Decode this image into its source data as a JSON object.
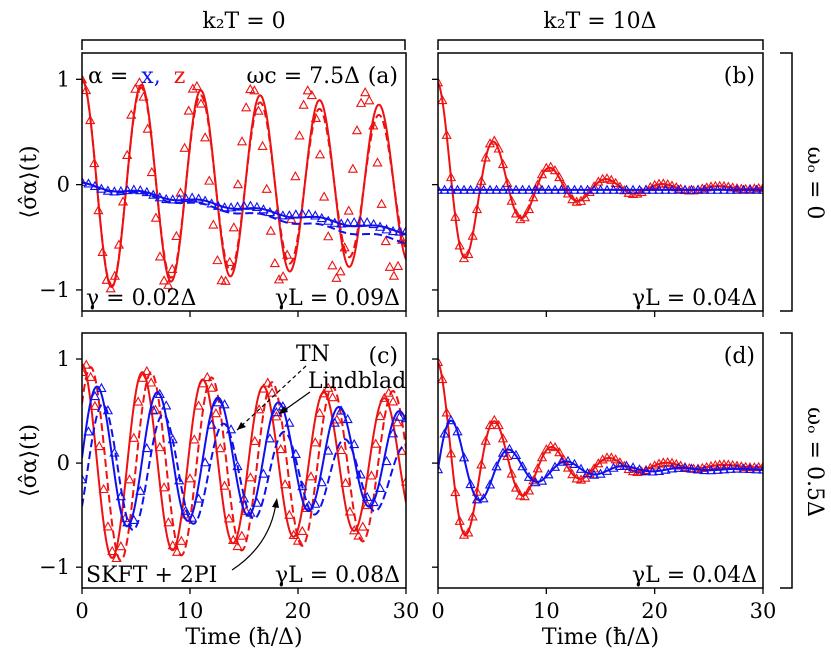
{
  "figure": {
    "column_headers": [
      "k₂T = 0",
      "k₂T = 10Δ"
    ],
    "row_labels": [
      "ωₒ = 0",
      "ωₒ = 0.5Δ"
    ],
    "legend_alpha": {
      "prefix": "α =",
      "x": "x",
      "comma": ",",
      "z": "z"
    },
    "curve_labels": {
      "tn": "TN",
      "lindblad": "Lindblad",
      "skft": "SKFT + 2PI"
    },
    "colors": {
      "x": "#1010ee",
      "z": "#ee1111"
    },
    "styles": {
      "skft": "solid line",
      "tn": "dashed line",
      "lindblad": "triangles"
    }
  },
  "chart_data": [
    {
      "id": "a",
      "type": "line",
      "panel_label": "(a)",
      "col": 0,
      "row": 0,
      "title": "",
      "xlabel": "",
      "ylabel": "⟨σ̂α⟩(t)",
      "xlim": [
        0,
        30
      ],
      "ylim": [
        -1.2,
        1.25
      ],
      "xticks": [
        0,
        10,
        20,
        30
      ],
      "yticks": [
        -1,
        0,
        1
      ],
      "show_xticklabels": false,
      "show_yticklabels": true,
      "annotations": {
        "top_right": "ωc = 7.5Δ",
        "bottom_left": "γ = 0.02Δ",
        "bottom_right": "γL = 0.09Δ"
      },
      "series": [
        {
          "name": "z SKFT + 2PI",
          "component": "z",
          "style": "solid",
          "x_start": 0,
          "x_end": 30,
          "A": 1.0,
          "period": 5.5,
          "gamma": 0.01,
          "offset": 0,
          "slope": 0
        },
        {
          "name": "z TN",
          "component": "z",
          "style": "dashed",
          "x_start": 0,
          "x_end": 30,
          "A": 1.0,
          "period": 5.5,
          "gamma": 0.015,
          "offset": 0,
          "slope": 0
        },
        {
          "name": "z Lindblad",
          "component": "z",
          "style": "triangle",
          "x_start": 0,
          "x_end": 30,
          "step": 0.38,
          "A": 1.0,
          "period": 5.25,
          "gamma": 0.005,
          "offset": 0,
          "slope": 0
        },
        {
          "name": "x SKFT + 2PI",
          "component": "x",
          "style": "solid",
          "x_start": 0,
          "x_end": 30,
          "A": 0.02,
          "period": 5.5,
          "gamma": 0,
          "offset": 0,
          "slope": -0.015
        },
        {
          "name": "x TN",
          "component": "x",
          "style": "dashed",
          "x_start": 0,
          "x_end": 30,
          "A": 0.02,
          "period": 5.5,
          "gamma": 0,
          "offset": 0,
          "slope": -0.018
        },
        {
          "name": "x Lindblad",
          "component": "x",
          "style": "triangle",
          "x_start": 0,
          "x_end": 30,
          "step": 0.6,
          "A": 0.025,
          "period": 5.25,
          "gamma": 0,
          "offset": 0,
          "slope": -0.0145
        }
      ]
    },
    {
      "id": "b",
      "type": "line",
      "panel_label": "(b)",
      "col": 1,
      "row": 0,
      "title": "",
      "xlabel": "",
      "ylabel": "",
      "xlim": [
        0,
        30
      ],
      "ylim": [
        -1.2,
        1.25
      ],
      "xticks": [
        0,
        10,
        20,
        30
      ],
      "yticks": [
        -1,
        0,
        1
      ],
      "show_xticklabels": false,
      "show_yticklabels": false,
      "annotations": {
        "bottom_right": "γL = 0.04Δ"
      },
      "series": [
        {
          "name": "z SKFT + 2PI",
          "component": "z",
          "style": "solid",
          "x_start": 0,
          "x_end": 30,
          "A": 1.0,
          "period": 5.2,
          "gamma": 0.16,
          "offset": -0.03,
          "slope": 0
        },
        {
          "name": "z Lindblad",
          "component": "z",
          "style": "triangle",
          "x_start": 0,
          "x_end": 30,
          "step": 0.4,
          "A": 1.0,
          "period": 5.2,
          "gamma": 0.155,
          "offset": -0.03,
          "slope": 0
        },
        {
          "name": "x SKFT + 2PI",
          "component": "x",
          "style": "solid",
          "x_start": 0,
          "x_end": 30,
          "A": 0.0,
          "period": 5.2,
          "gamma": 0,
          "offset": -0.05,
          "slope": 0
        },
        {
          "name": "x Lindblad",
          "component": "x",
          "style": "triangle",
          "x_start": 0,
          "x_end": 30,
          "step": 0.6,
          "A": 0.0,
          "period": 5.2,
          "gamma": 0,
          "offset": -0.05,
          "slope": 0
        }
      ]
    },
    {
      "id": "c",
      "type": "line",
      "panel_label": "(c)",
      "col": 0,
      "row": 1,
      "title": "",
      "xlabel": "Time (ħ/Δ)",
      "ylabel": "⟨σ̂α⟩(t)",
      "xlim": [
        0,
        30
      ],
      "ylim": [
        -1.2,
        1.25
      ],
      "xticks": [
        0,
        10,
        20,
        30
      ],
      "yticks": [
        -1,
        0,
        1
      ],
      "show_xticklabels": true,
      "show_yticklabels": true,
      "annotations": {
        "bottom_right": "γL = 0.08Δ"
      },
      "series": [
        {
          "name": "z SKFT + 2PI",
          "component": "z",
          "style": "solid",
          "x_start": 0,
          "x_end": 30,
          "A": 0.95,
          "period": 5.6,
          "gamma": 0.015,
          "offset": 0,
          "slope": 0
        },
        {
          "name": "z TN",
          "component": "z",
          "style": "dashed",
          "x_start": 0,
          "x_end": 30,
          "A": 0.95,
          "period": 5.6,
          "gamma": 0.01,
          "offset": -0.02,
          "slope": 0,
          "phase": 0.9
        },
        {
          "name": "z Lindblad",
          "component": "z",
          "style": "triangle",
          "x_start": 0,
          "x_end": 30,
          "step": 0.4,
          "A": 0.95,
          "period": 5.6,
          "gamma": 0.012,
          "offset": 0,
          "slope": 0,
          "phase": 0.4
        },
        {
          "name": "x SKFT + 2PI",
          "component": "x",
          "style": "solid",
          "kind": "sine",
          "x_start": 0,
          "x_end": 30,
          "A": 0.7,
          "period": 5.6,
          "gamma": 0.015,
          "offset": 0.05,
          "slope": 0
        },
        {
          "name": "x TN",
          "component": "x",
          "style": "dashed",
          "kind": "sine",
          "x_start": 0,
          "x_end": 30,
          "A": 0.65,
          "period": 5.6,
          "gamma": 0.025,
          "offset": -0.05,
          "slope": -0.003,
          "phase": 0.6
        },
        {
          "name": "x Lindblad",
          "component": "x",
          "style": "triangle",
          "kind": "sine",
          "x_start": 0,
          "x_end": 30,
          "step": 0.6,
          "A": 0.7,
          "period": 5.6,
          "gamma": 0.018,
          "offset": 0.05,
          "slope": 0,
          "phase": 0.3
        }
      ]
    },
    {
      "id": "d",
      "type": "line",
      "panel_label": "(d)",
      "col": 1,
      "row": 1,
      "title": "",
      "xlabel": "Time (ħ/Δ)",
      "ylabel": "",
      "xlim": [
        0,
        30
      ],
      "ylim": [
        -1.2,
        1.25
      ],
      "xticks": [
        0,
        10,
        20,
        30
      ],
      "yticks": [
        -1,
        0,
        1
      ],
      "show_xticklabels": true,
      "show_yticklabels": false,
      "annotations": {
        "bottom_right": "γL = 0.04Δ"
      },
      "series": [
        {
          "name": "z SKFT + 2PI",
          "component": "z",
          "style": "solid",
          "x_start": 0,
          "x_end": 30,
          "A": 1.0,
          "period": 5.3,
          "gamma": 0.16,
          "offset": -0.03,
          "slope": 0
        },
        {
          "name": "z Lindblad",
          "component": "z",
          "style": "triangle",
          "x_start": 0,
          "x_end": 30,
          "step": 0.4,
          "A": 1.0,
          "period": 5.3,
          "gamma": 0.155,
          "offset": -0.03,
          "slope": 0
        },
        {
          "name": "x SKFT + 2PI",
          "component": "x",
          "style": "solid",
          "kind": "sine",
          "x_start": 0,
          "x_end": 30,
          "A": 0.58,
          "period": 5.3,
          "gamma": 0.17,
          "offset": -0.06,
          "slope": 0
        },
        {
          "name": "x Lindblad",
          "component": "x",
          "style": "triangle",
          "kind": "sine",
          "x_start": 0,
          "x_end": 30,
          "step": 0.6,
          "A": 0.58,
          "period": 5.3,
          "gamma": 0.165,
          "offset": -0.06,
          "slope": 0
        }
      ]
    }
  ]
}
